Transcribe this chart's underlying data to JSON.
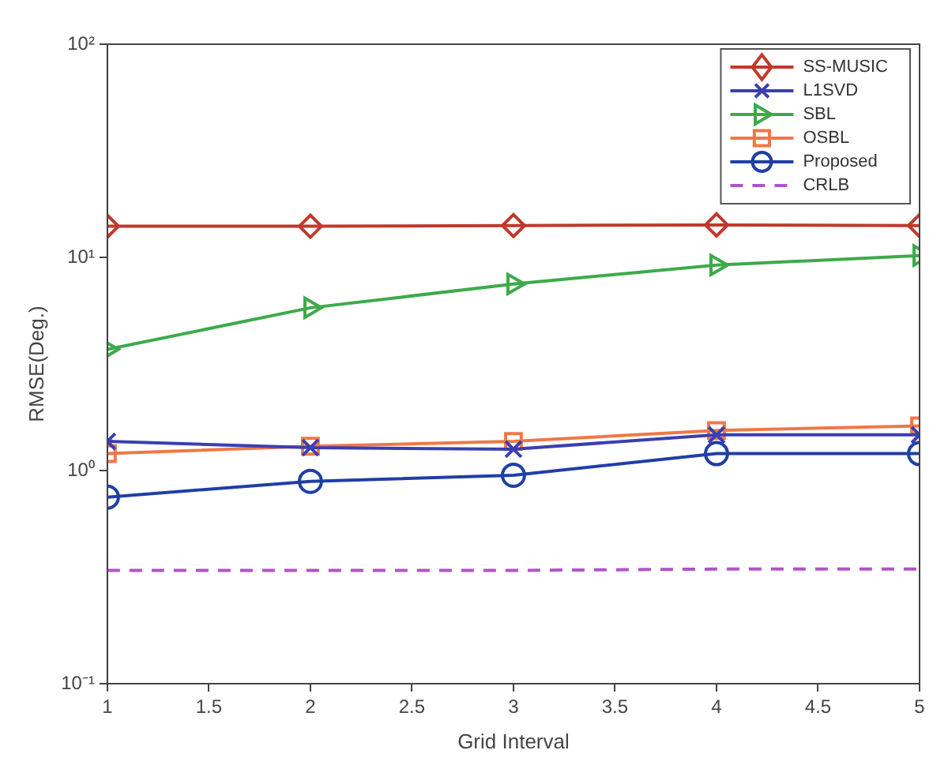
{
  "chart_data": {
    "type": "line",
    "xlabel": "Grid Interval",
    "ylabel": "RMSE(Deg.)",
    "x": [
      1,
      2,
      3,
      4,
      5
    ],
    "xlim": [
      1,
      5
    ],
    "xticks": [
      1,
      1.5,
      2,
      2.5,
      3,
      3.5,
      4,
      4.5,
      5
    ],
    "ylim": [
      0.1,
      100
    ],
    "yticks": [
      {
        "value": 0.1,
        "label": "10⁻¹"
      },
      {
        "value": 1,
        "label": "10⁰"
      },
      {
        "value": 10,
        "label": "10¹"
      },
      {
        "value": 100,
        "label": "10²"
      }
    ],
    "log": "y",
    "grid": false,
    "legend": "top right",
    "series": [
      {
        "name": "SS-MUSIC",
        "color": "#c0392b",
        "marker": "diamond",
        "values": [
          14,
          14,
          14.1,
          14.2,
          14.1
        ]
      },
      {
        "name": "L1SVD",
        "color": "#3a3fb0",
        "marker": "cross",
        "values": [
          1.37,
          1.28,
          1.26,
          1.47,
          1.47
        ]
      },
      {
        "name": "SBL",
        "color": "#3daa4a",
        "marker": "triangle",
        "values": [
          3.7,
          5.8,
          7.5,
          9.2,
          10.2
        ]
      },
      {
        "name": "OSBL",
        "color": "#f07846",
        "marker": "square",
        "values": [
          1.2,
          1.3,
          1.37,
          1.54,
          1.62
        ]
      },
      {
        "name": "Proposed",
        "color": "#1f3fa5",
        "marker": "circle",
        "values": [
          0.75,
          0.89,
          0.95,
          1.2,
          1.2
        ]
      },
      {
        "name": "CRLB",
        "color": "#b054c8",
        "marker": "none",
        "line_style": "dashed",
        "values": [
          0.34,
          0.34,
          0.34,
          0.345,
          0.345
        ]
      }
    ]
  }
}
